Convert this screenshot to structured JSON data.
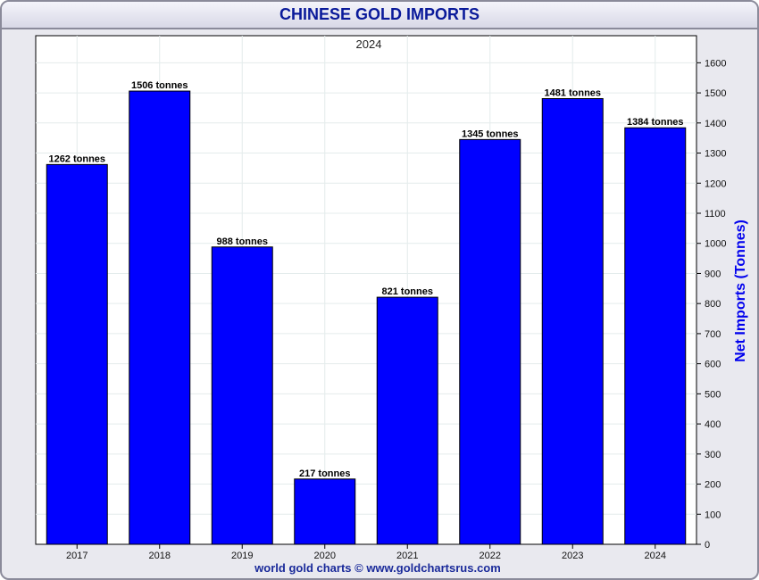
{
  "title": "CHINESE GOLD IMPORTS",
  "footer": "world gold charts © www.goldchartsrus.com",
  "colors": {
    "bar": "#0000ff",
    "title": "#0a1a9a",
    "ylabel": "#0000ee",
    "grid": "#e4ecec"
  },
  "chart_data": {
    "type": "bar",
    "title": "2024",
    "categories": [
      "2017",
      "2018",
      "2019",
      "2020",
      "2021",
      "2022",
      "2023",
      "2024"
    ],
    "values": [
      1262,
      1506,
      988,
      217,
      821,
      1345,
      1481,
      1384
    ],
    "data_labels": [
      "1262 tonnes",
      "1506 tonnes",
      "988 tonnes",
      "217 tonnes",
      "821 tonnes",
      "1345 tonnes",
      "1481 tonnes",
      "1384 tonnes"
    ],
    "xlabel": "",
    "ylabel": "Net Imports (Tonnes)",
    "ylim": [
      0,
      1600
    ],
    "yticks": [
      0,
      100,
      200,
      300,
      400,
      500,
      600,
      700,
      800,
      900,
      1000,
      1100,
      1200,
      1300,
      1400,
      1500,
      1600
    ],
    "y_axis_side": "right",
    "grid": true,
    "legend": "none"
  }
}
